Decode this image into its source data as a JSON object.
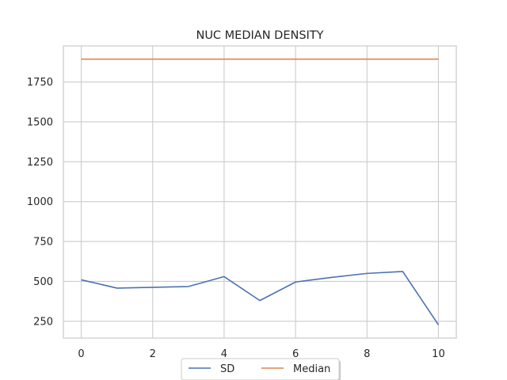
{
  "chart_data": {
    "type": "line",
    "title": "NUC MEDIAN DENSITY",
    "xlabel": "",
    "ylabel": "",
    "x": [
      0,
      1,
      2,
      3,
      4,
      5,
      6,
      7,
      8,
      9,
      10
    ],
    "series": [
      {
        "name": "SD",
        "color": "#4c72b0",
        "values": [
          510,
          458,
          463,
          468,
          530,
          380,
          496,
          525,
          550,
          562,
          228
        ]
      },
      {
        "name": "Median",
        "color": "#dd8452",
        "values": [
          1893,
          1893,
          1893,
          1893,
          1893,
          1893,
          1893,
          1893,
          1893,
          1893,
          1893
        ]
      }
    ],
    "xlim": [
      -0.5,
      10.5
    ],
    "ylim": [
      145,
      1976
    ],
    "xticks": [
      0,
      2,
      4,
      6,
      8,
      10
    ],
    "yticks": [
      250,
      500,
      750,
      1000,
      1250,
      1500,
      1750
    ],
    "grid": true,
    "legend_position": "bottom-center",
    "legend_columns": 2
  }
}
